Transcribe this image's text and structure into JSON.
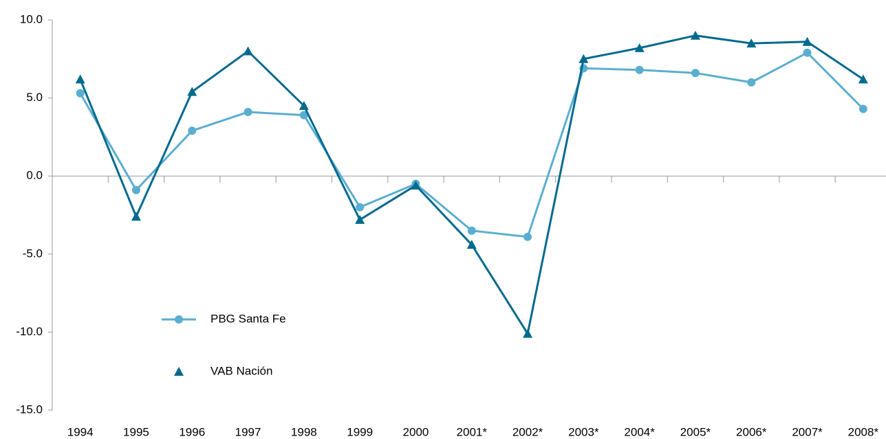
{
  "chart_data": {
    "type": "line",
    "categories": [
      "1994",
      "1995",
      "1996",
      "1997",
      "1998",
      "1999",
      "2000",
      "2001*",
      "2002*",
      "2003*",
      "2004*",
      "2005*",
      "2006*",
      "2007*",
      "2008*"
    ],
    "series": [
      {
        "name": "PBG Santa Fe",
        "color": "#5aaed0",
        "marker": "circle",
        "values": [
          5.3,
          -0.9,
          2.9,
          4.1,
          3.9,
          -2.0,
          -0.5,
          -3.5,
          -3.9,
          6.9,
          6.8,
          6.6,
          6.0,
          7.9,
          4.3
        ]
      },
      {
        "name": "VAB Nación",
        "color": "#006a8e",
        "marker": "triangle",
        "values": [
          6.2,
          -2.6,
          5.4,
          8.0,
          4.5,
          -2.8,
          -0.6,
          -4.4,
          -10.1,
          7.5,
          8.2,
          9.0,
          8.5,
          8.6,
          6.2
        ]
      }
    ],
    "ylim": [
      -15,
      10
    ],
    "yticks": [
      {
        "value": -15,
        "label": "-15.0"
      },
      {
        "value": -10,
        "label": "-10.0"
      },
      {
        "value": -5,
        "label": "-5.0"
      },
      {
        "value": 0,
        "label": "0.0"
      },
      {
        "value": 5,
        "label": "5.0"
      },
      {
        "value": 10,
        "label": "10.0"
      }
    ],
    "grid": false
  }
}
